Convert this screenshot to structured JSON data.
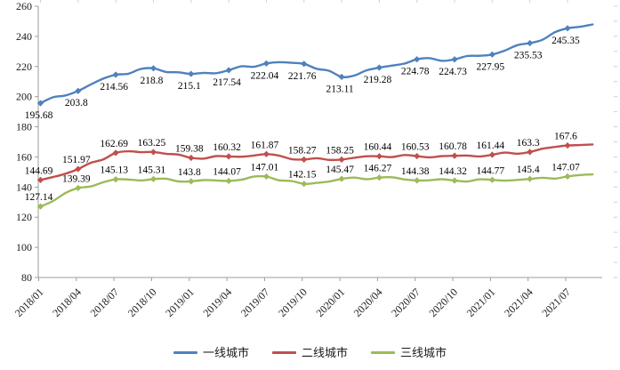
{
  "chart_data": {
    "type": "line",
    "title": "",
    "xlabel": "",
    "ylabel": "",
    "categories": [
      "2018/01",
      "2018/04",
      "2018/07",
      "2018/10",
      "2019/01",
      "2019/04",
      "2019/07",
      "2019/10",
      "2020/01",
      "2020/04",
      "2020/07",
      "2020/10",
      "2021/01",
      "2021/04",
      "2021/07"
    ],
    "series": [
      {
        "name": "一线城市",
        "color": "#4F81BD",
        "values": [
          195.68,
          203.8,
          214.56,
          218.8,
          215.1,
          217.54,
          222.04,
          221.76,
          213.11,
          219.28,
          224.78,
          224.73,
          227.95,
          235.53,
          245.35
        ],
        "trailing_value": 247.9,
        "label_side": "below"
      },
      {
        "name": "二线城市",
        "color": "#C0504D",
        "values": [
          144.69,
          151.97,
          162.69,
          163.25,
          159.38,
          160.32,
          161.87,
          158.27,
          158.25,
          160.44,
          160.53,
          160.78,
          161.44,
          163.3,
          167.6
        ],
        "trailing_value": 168.3,
        "label_side": "above"
      },
      {
        "name": "三线城市",
        "color": "#9BBB59",
        "values": [
          127.14,
          139.39,
          145.13,
          145.31,
          143.8,
          144.07,
          147.01,
          142.15,
          145.47,
          146.27,
          144.38,
          144.32,
          144.77,
          145.4,
          147.07
        ],
        "trailing_value": 148.4,
        "label_side": "above"
      }
    ],
    "ylim": [
      80,
      260
    ],
    "ytick_step": 20,
    "y_ticks": [
      80,
      100,
      120,
      140,
      160,
      180,
      200,
      220,
      240,
      260
    ],
    "grid": false,
    "legend_position": "bottom",
    "marker_shape": "diamond",
    "x_label_rotation_deg": -45,
    "axis_color": "#9c9c9c",
    "minor_tick_color": "#d0d0d0"
  }
}
